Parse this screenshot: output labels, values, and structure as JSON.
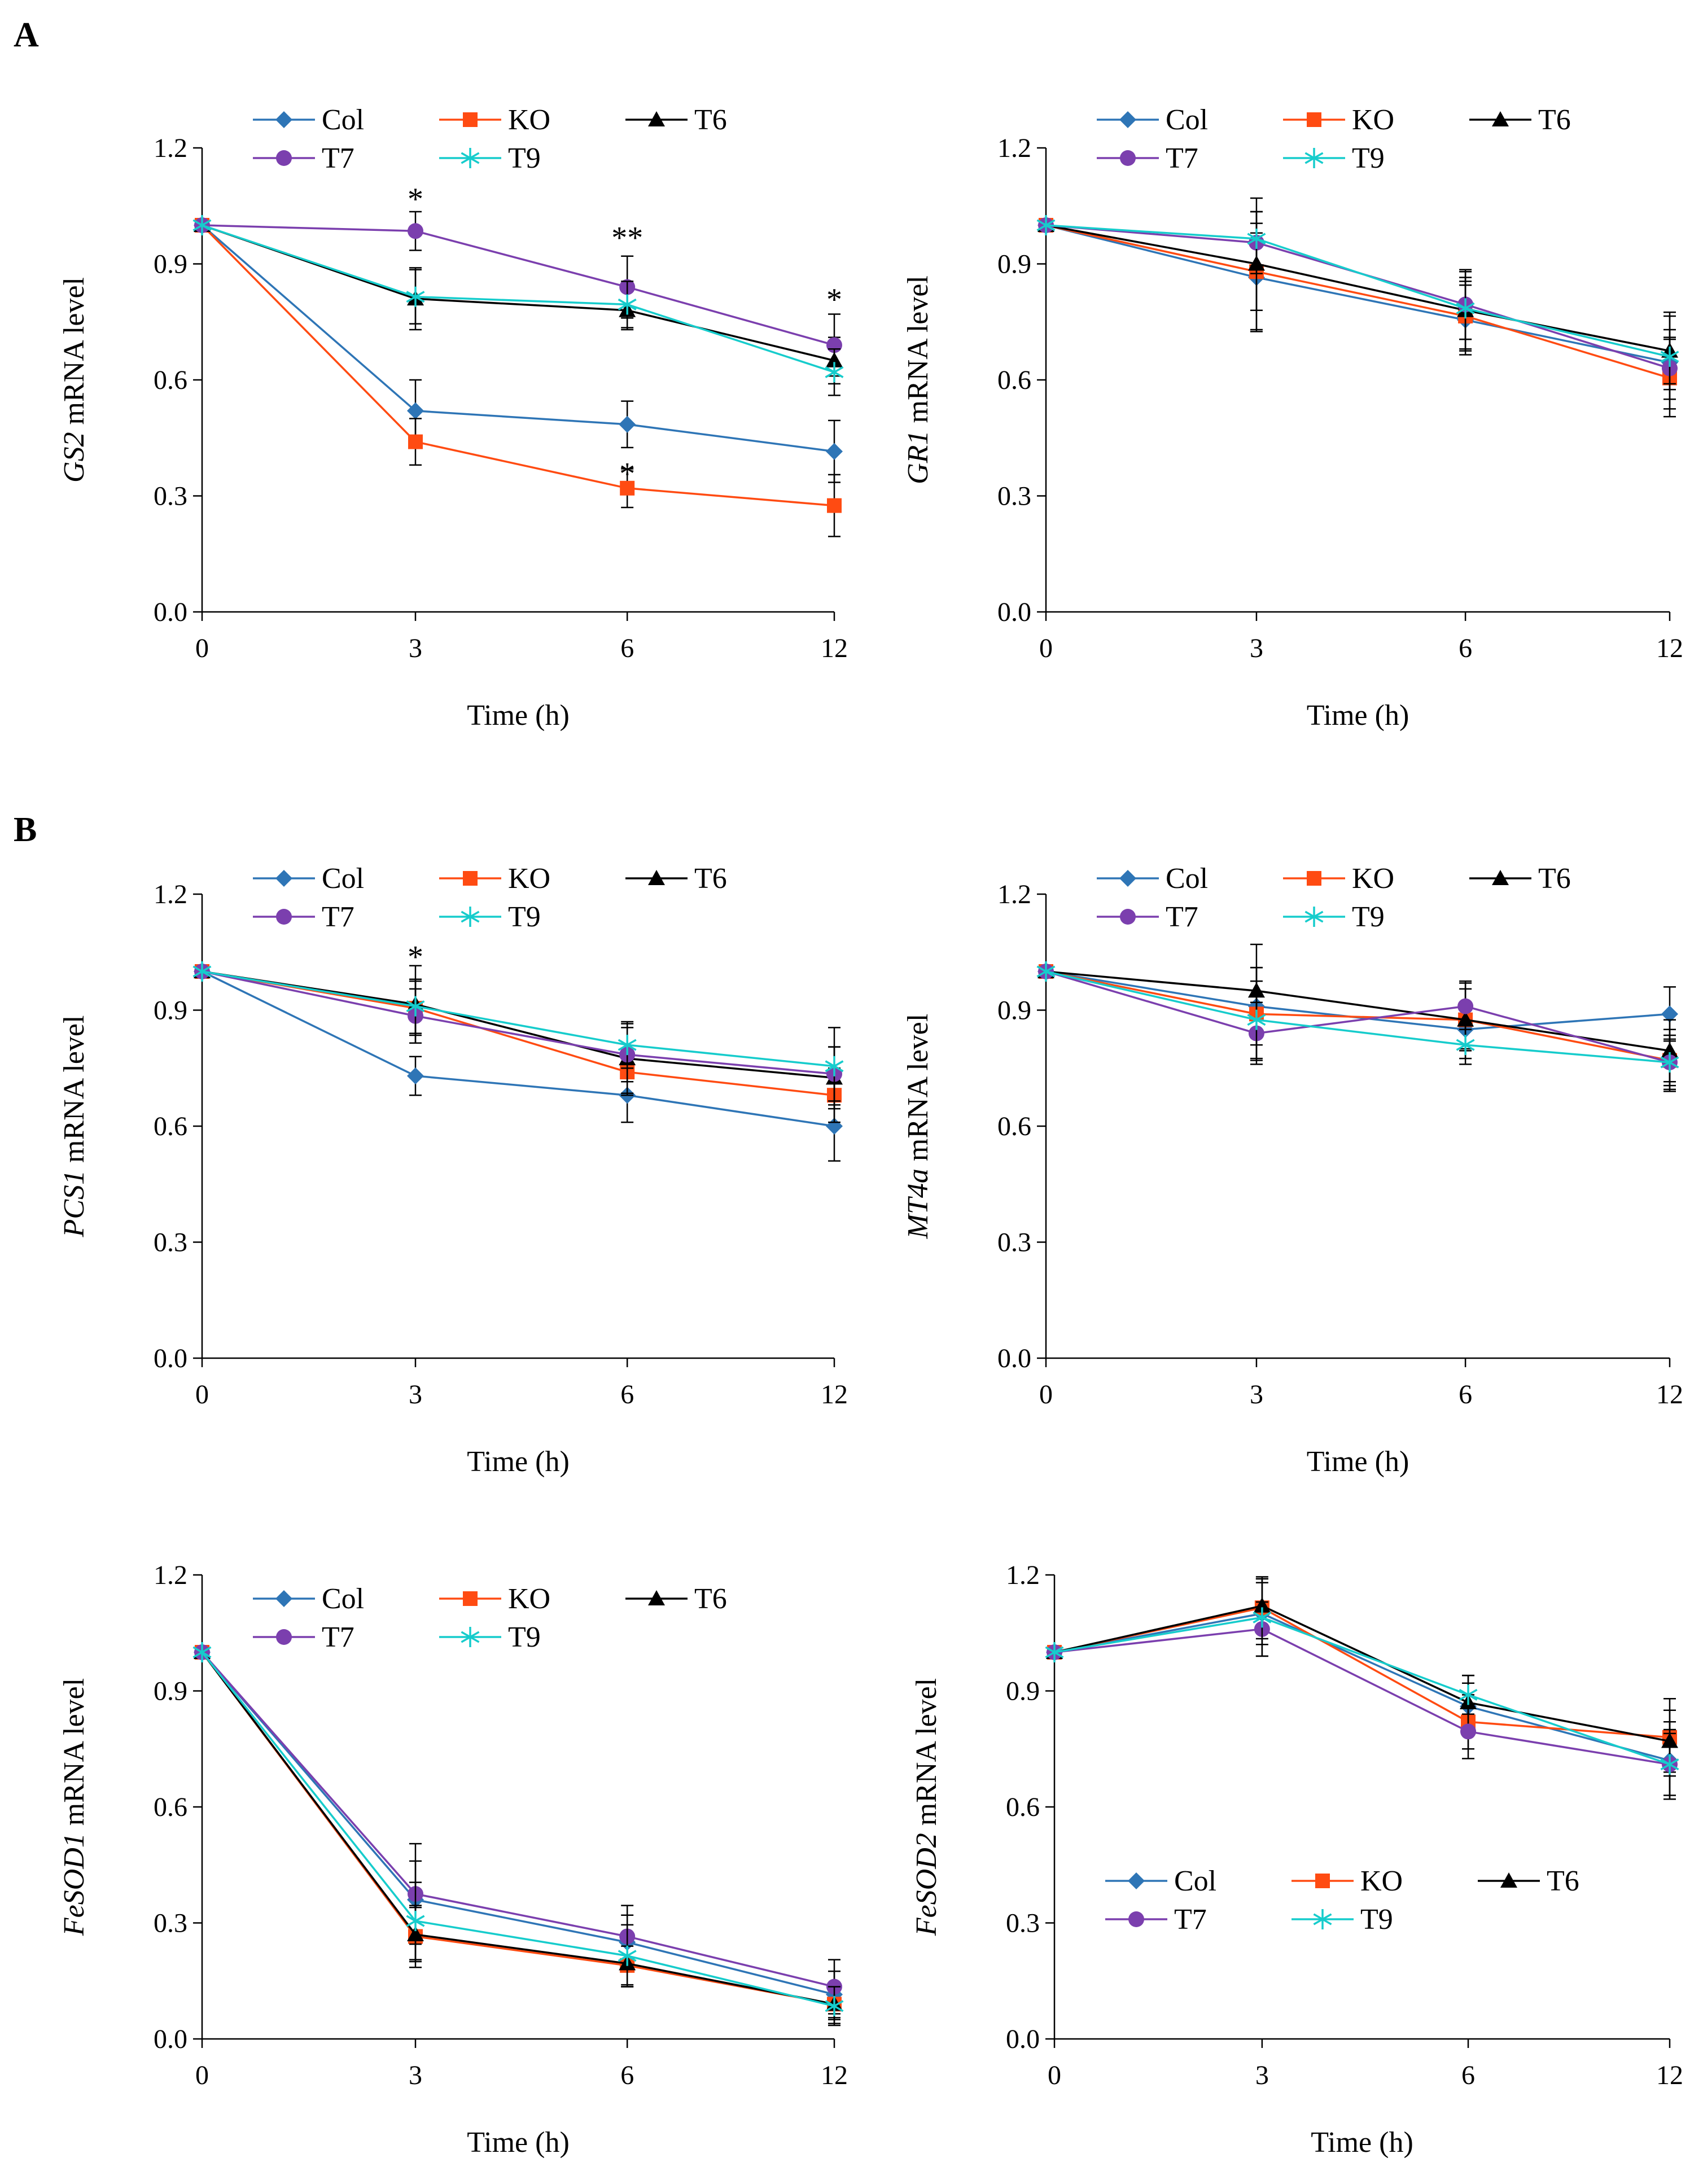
{
  "figure": {
    "panel_labels": [
      "A",
      "B"
    ]
  },
  "styles": {
    "Col": {
      "color": "#2E75B6",
      "marker": "diamond"
    },
    "KO": {
      "color": "#FF4B12",
      "marker": "square"
    },
    "T6": {
      "color": "#000000",
      "marker": "triangle"
    },
    "T7": {
      "color": "#7B3FAE",
      "marker": "circle"
    },
    "T9": {
      "color": "#16CCCC",
      "marker": "star"
    }
  },
  "chart_data": [
    {
      "type": "line",
      "gene": "GS2",
      "ylabel_suffix": " mRNA level",
      "xlabel": "Time  (h)",
      "categories": [
        "0",
        "3",
        "6",
        "12"
      ],
      "yticks": [
        "0.0",
        "0.3",
        "0.6",
        "0.9",
        "1.2"
      ],
      "ylim": [
        0,
        1.2
      ],
      "series": [
        {
          "name": "Col",
          "values": [
            1.0,
            0.52,
            0.485,
            0.415
          ],
          "errors": [
            0,
            0.08,
            0.06,
            0.08
          ]
        },
        {
          "name": "KO",
          "values": [
            1.0,
            0.44,
            0.32,
            0.275
          ],
          "errors": [
            0,
            0.06,
            0.05,
            0.08
          ]
        },
        {
          "name": "T6",
          "values": [
            1.0,
            0.81,
            0.78,
            0.65
          ],
          "errors": [
            0,
            0.08,
            0.05,
            0.06
          ]
        },
        {
          "name": "T7",
          "values": [
            1.0,
            0.985,
            0.84,
            0.69
          ],
          "errors": [
            0,
            0.05,
            0.08,
            0.08
          ]
        },
        {
          "name": "T9",
          "values": [
            1.0,
            0.815,
            0.795,
            0.62
          ],
          "errors": [
            0,
            0.07,
            0.06,
            0.06
          ]
        }
      ],
      "annotations": [
        {
          "text": "*",
          "x": "3",
          "y": 1.07
        },
        {
          "text": "**",
          "x": "6",
          "y": 0.97
        },
        {
          "text": "*",
          "x": "12",
          "y": 0.81
        },
        {
          "text": "*",
          "x": "6",
          "y": 0.36
        }
      ]
    },
    {
      "type": "line",
      "gene": "GR1",
      "ylabel_suffix": " mRNA level",
      "xlabel": "Time  (h)",
      "categories": [
        "0",
        "3",
        "6",
        "12"
      ],
      "yticks": [
        "0.0",
        "0.3",
        "0.6",
        "0.9",
        "1.2"
      ],
      "ylim": [
        0,
        1.2
      ],
      "series": [
        {
          "name": "Col",
          "values": [
            1.0,
            0.865,
            0.755,
            0.645
          ],
          "errors": [
            0,
            0.14,
            0.09,
            0.12
          ]
        },
        {
          "name": "KO",
          "values": [
            1.0,
            0.88,
            0.765,
            0.605
          ],
          "errors": [
            0,
            0.1,
            0.09,
            0.1
          ]
        },
        {
          "name": "T6",
          "values": [
            1.0,
            0.9,
            0.78,
            0.675
          ],
          "errors": [
            0,
            0.17,
            0.1,
            0.1
          ]
        },
        {
          "name": "T7",
          "values": [
            1.0,
            0.955,
            0.795,
            0.63
          ],
          "errors": [
            0,
            0.08,
            0.09,
            0.08
          ]
        },
        {
          "name": "T9",
          "values": [
            1.0,
            0.965,
            0.785,
            0.66
          ],
          "errors": [
            0,
            0.07,
            0.08,
            0.07
          ]
        }
      ],
      "annotations": []
    },
    {
      "type": "line",
      "gene": "PCS1",
      "ylabel_suffix": " mRNA level",
      "xlabel": "Time  (h)",
      "categories": [
        "0",
        "3",
        "6",
        "12"
      ],
      "yticks": [
        "0.0",
        "0.3",
        "0.6",
        "0.9",
        "1.2"
      ],
      "ylim": [
        0,
        1.2
      ],
      "series": [
        {
          "name": "Col",
          "values": [
            1.0,
            0.73,
            0.68,
            0.6
          ],
          "errors": [
            0,
            0.05,
            0.07,
            0.09
          ]
        },
        {
          "name": "KO",
          "values": [
            1.0,
            0.905,
            0.74,
            0.68
          ],
          "errors": [
            0,
            0.07,
            0.06,
            0.07
          ]
        },
        {
          "name": "T6",
          "values": [
            1.0,
            0.915,
            0.775,
            0.725
          ],
          "errors": [
            0,
            0.1,
            0.09,
            0.08
          ]
        },
        {
          "name": "T7",
          "values": [
            1.0,
            0.885,
            0.785,
            0.735
          ],
          "errors": [
            0,
            0.07,
            0.07,
            0.07
          ]
        },
        {
          "name": "T9",
          "values": [
            1.0,
            0.91,
            0.81,
            0.755
          ],
          "errors": [
            0,
            0.07,
            0.06,
            0.1
          ]
        }
      ],
      "annotations": [
        {
          "text": "*",
          "x": "3",
          "y": 1.04
        }
      ]
    },
    {
      "type": "line",
      "gene": "MT4a",
      "ylabel_suffix": " mRNA level",
      "xlabel": "Time  (h)",
      "categories": [
        "0",
        "3",
        "6",
        "12"
      ],
      "yticks": [
        "0.0",
        "0.3",
        "0.6",
        "0.9",
        "1.2"
      ],
      "ylim": [
        0,
        1.2
      ],
      "series": [
        {
          "name": "Col",
          "values": [
            1.0,
            0.91,
            0.85,
            0.89
          ],
          "errors": [
            0,
            0.1,
            0.05,
            0.07
          ]
        },
        {
          "name": "KO",
          "values": [
            1.0,
            0.89,
            0.875,
            0.77
          ],
          "errors": [
            0,
            0.12,
            0.08,
            0.08
          ]
        },
        {
          "name": "T6",
          "values": [
            1.0,
            0.95,
            0.875,
            0.795
          ],
          "errors": [
            0,
            0.12,
            0.1,
            0.08
          ]
        },
        {
          "name": "T7",
          "values": [
            1.0,
            0.84,
            0.91,
            0.765
          ],
          "errors": [
            0,
            0.08,
            0.06,
            0.07
          ]
        },
        {
          "name": "T9",
          "values": [
            1.0,
            0.875,
            0.81,
            0.765
          ],
          "errors": [
            0,
            0.1,
            0.05,
            0.06
          ]
        }
      ],
      "annotations": []
    },
    {
      "type": "line",
      "gene": "FeSOD1",
      "ylabel_suffix": " mRNA level",
      "xlabel": "Time  (h)",
      "categories": [
        "0",
        "3",
        "6",
        "12"
      ],
      "yticks": [
        "0.0",
        "0.3",
        "0.6",
        "0.9",
        "1.2"
      ],
      "ylim": [
        0,
        1.2
      ],
      "series": [
        {
          "name": "Col",
          "values": [
            1.0,
            0.36,
            0.25,
            0.115
          ],
          "errors": [
            0,
            0.1,
            0.07,
            0.06
          ]
        },
        {
          "name": "KO",
          "values": [
            1.0,
            0.265,
            0.19,
            0.09
          ],
          "errors": [
            0,
            0.08,
            0.05,
            0.05
          ]
        },
        {
          "name": "T6",
          "values": [
            1.0,
            0.27,
            0.195,
            0.09
          ],
          "errors": [
            0,
            0.07,
            0.06,
            0.04
          ]
        },
        {
          "name": "T7",
          "values": [
            1.0,
            0.375,
            0.265,
            0.135
          ],
          "errors": [
            0,
            0.13,
            0.08,
            0.07
          ]
        },
        {
          "name": "T9",
          "values": [
            1.0,
            0.305,
            0.215,
            0.085
          ],
          "errors": [
            0,
            0.1,
            0.08,
            0.05
          ]
        }
      ],
      "annotations": []
    },
    {
      "type": "line",
      "gene": "FeSOD2",
      "ylabel_suffix": " mRNA level",
      "xlabel": "Time  (h)",
      "categories": [
        "0",
        "3",
        "6",
        "12"
      ],
      "yticks": [
        "0.0",
        "0.3",
        "0.6",
        "0.9",
        "1.2"
      ],
      "ylim": [
        0,
        1.2
      ],
      "series": [
        {
          "name": "Col",
          "values": [
            1.0,
            1.1,
            0.86,
            0.72
          ],
          "errors": [
            0,
            0.08,
            0.06,
            0.1
          ]
        },
        {
          "name": "KO",
          "values": [
            1.0,
            1.115,
            0.82,
            0.78
          ],
          "errors": [
            0,
            0.08,
            0.07,
            0.1
          ]
        },
        {
          "name": "T6",
          "values": [
            1.0,
            1.12,
            0.87,
            0.77
          ],
          "errors": [
            0,
            0.07,
            0.07,
            0.08
          ]
        },
        {
          "name": "T7",
          "values": [
            1.0,
            1.06,
            0.795,
            0.71
          ],
          "errors": [
            0,
            0.07,
            0.07,
            0.08
          ]
        },
        {
          "name": "T9",
          "values": [
            1.0,
            1.09,
            0.89,
            0.71
          ],
          "errors": [
            0,
            0.1,
            0.05,
            0.09
          ]
        }
      ],
      "annotations": []
    }
  ]
}
